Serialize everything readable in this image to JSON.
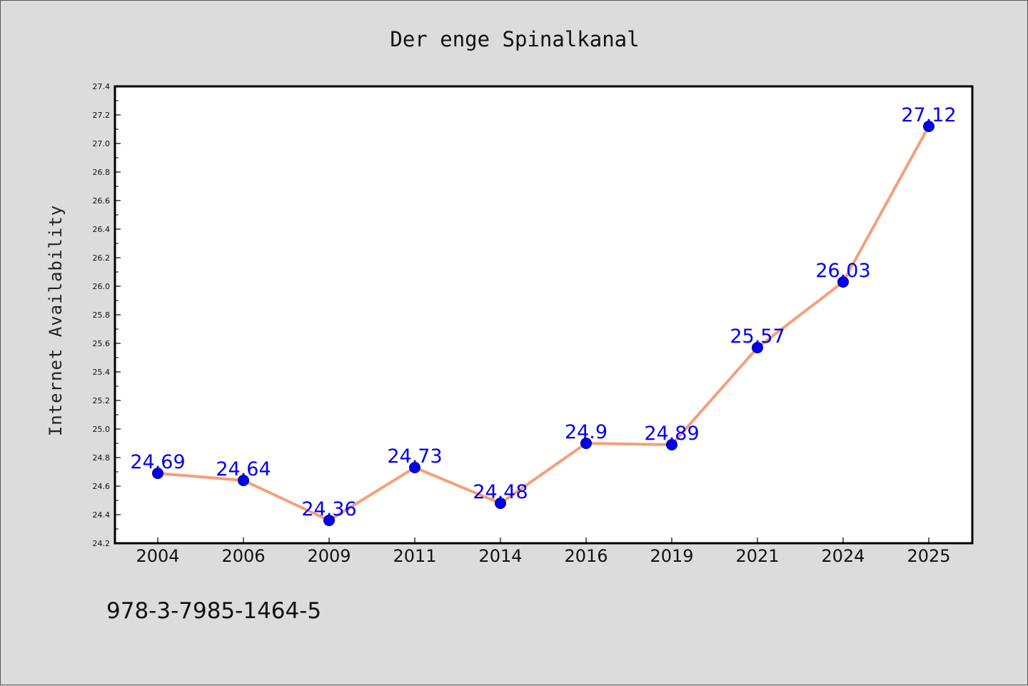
{
  "chart_data": {
    "type": "line",
    "title": "Der enge Spinalkanal",
    "ylabel": "Internet Availability",
    "xlabel": "",
    "categories": [
      "2004",
      "2006",
      "2009",
      "2011",
      "2014",
      "2016",
      "2019",
      "2021",
      "2024",
      "2025"
    ],
    "values": [
      24.69,
      24.64,
      24.36,
      24.73,
      24.48,
      24.9,
      24.89,
      25.57,
      26.03,
      27.12
    ],
    "data_labels": [
      "24.69",
      "24.64",
      "24.36",
      "24.73",
      "24.48",
      "24.9",
      "24.89",
      "25.57",
      "26.03",
      "27.12"
    ],
    "ylim": [
      24.2,
      27.4
    ],
    "yticks": [
      "24.2",
      "24.4",
      "24.6",
      "24.8",
      "25.0",
      "25.2",
      "25.4",
      "25.6",
      "25.8",
      "26.0",
      "26.2",
      "26.4",
      "26.6",
      "26.8",
      "27.0",
      "27.2",
      "27.4"
    ],
    "grid": false,
    "colors": {
      "line": "#f4a07a",
      "marker": "#0000ee",
      "label": "#0000ee",
      "background": "#dcdcdc",
      "plot_background": "#ffffff"
    }
  },
  "footer": {
    "isbn": "978-3-7985-1464-5"
  }
}
